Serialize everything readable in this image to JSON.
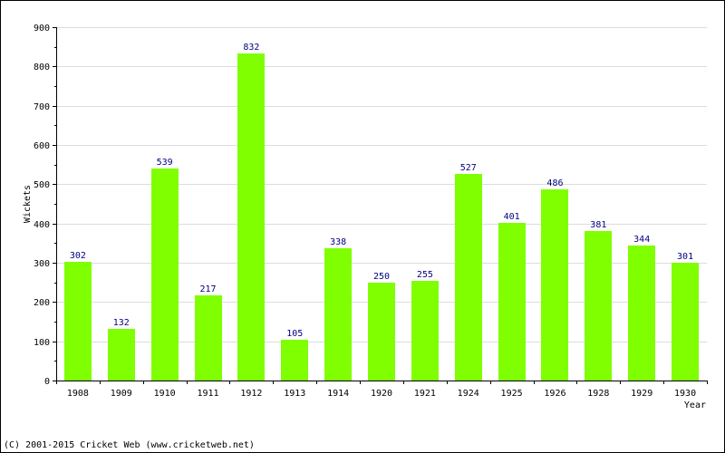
{
  "chart_data": {
    "type": "bar",
    "categories": [
      "1908",
      "1909",
      "1910",
      "1911",
      "1912",
      "1913",
      "1914",
      "1920",
      "1921",
      "1924",
      "1925",
      "1926",
      "1928",
      "1929",
      "1930"
    ],
    "values": [
      302,
      132,
      539,
      217,
      832,
      105,
      338,
      250,
      255,
      527,
      401,
      486,
      381,
      344,
      301
    ],
    "title": "",
    "xlabel": "Year",
    "ylabel": "Wickets",
    "ylim": [
      0,
      900
    ],
    "yticks": [
      0,
      100,
      200,
      300,
      400,
      500,
      600,
      700,
      800,
      900
    ],
    "grid": true,
    "legend": "none",
    "data_labels": true
  },
  "colors": {
    "bar": "#7fff00",
    "value_label": "#000080",
    "grid": "#dddddd",
    "axis": "#000000"
  },
  "footer": {
    "text": "(C) 2001-2015 Cricket Web (www.cricketweb.net)"
  }
}
